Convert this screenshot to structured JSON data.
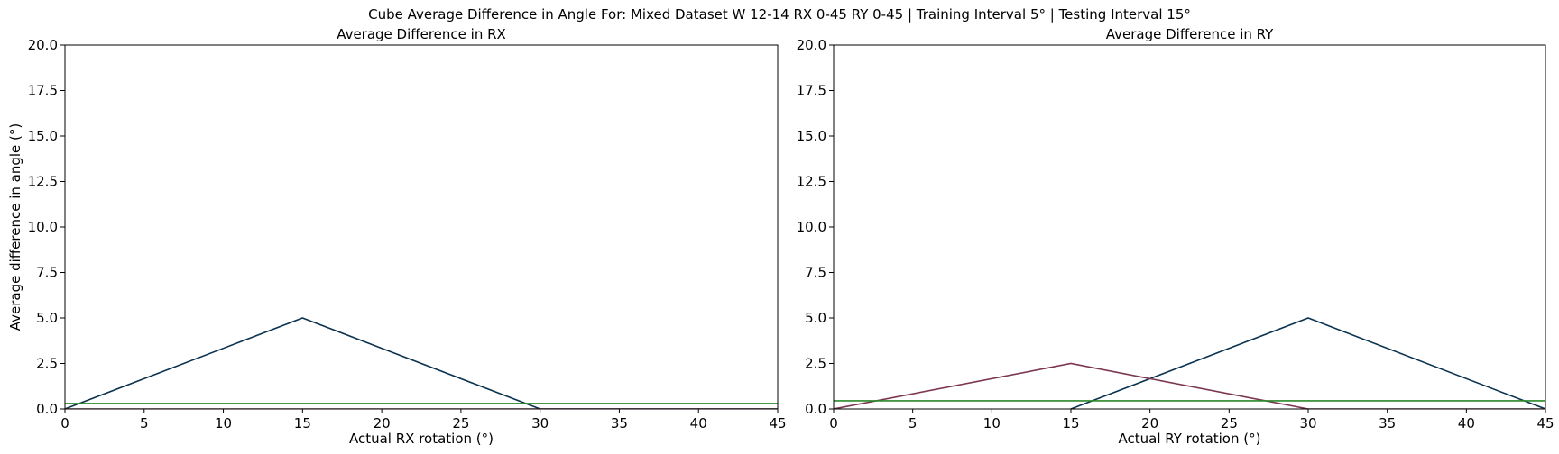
{
  "suptitle": "Cube Average Difference in Angle For: Mixed Dataset W 12-14 RX 0-45 RY 0-45 | Training Interval 5° | Testing Interval 15°",
  "chart_data": [
    {
      "type": "line",
      "title": "Average Difference in RX",
      "xlabel": "Actual RX rotation (°)",
      "ylabel": "Average difference in angle (°)",
      "xlim": [
        0,
        45
      ],
      "ylim": [
        0,
        20
      ],
      "xticks": [
        0,
        5,
        10,
        15,
        20,
        25,
        30,
        35,
        40,
        45
      ],
      "yticks": [
        0.0,
        2.5,
        5.0,
        7.5,
        10.0,
        12.5,
        15.0,
        17.5,
        20.0
      ],
      "xtick_labels": [
        "0",
        "5",
        "10",
        "15",
        "20",
        "25",
        "30",
        "35",
        "40",
        "45"
      ],
      "ytick_labels": [
        "0.0",
        "2.5",
        "5.0",
        "7.5",
        "10.0",
        "12.5",
        "15.0",
        "17.5",
        "20.0"
      ],
      "grid": false,
      "series": [
        {
          "color": "#0b3350",
          "x": [
            0,
            15,
            30,
            45
          ],
          "y": [
            0,
            5,
            0,
            0
          ]
        },
        {
          "color": "#7b3652",
          "x": [
            0,
            15,
            30,
            45
          ],
          "y": [
            0,
            0,
            0,
            0
          ]
        },
        {
          "color": "#2a8a2a",
          "x": [
            0,
            45
          ],
          "y": [
            0.3,
            0.3
          ]
        }
      ]
    },
    {
      "type": "line",
      "title": "Average Difference in RY",
      "xlabel": "Actual RY rotation (°)",
      "ylabel": "",
      "xlim": [
        0,
        45
      ],
      "ylim": [
        0,
        20
      ],
      "xticks": [
        0,
        5,
        10,
        15,
        20,
        25,
        30,
        35,
        40,
        45
      ],
      "yticks": [
        0.0,
        2.5,
        5.0,
        7.5,
        10.0,
        12.5,
        15.0,
        17.5,
        20.0
      ],
      "xtick_labels": [
        "0",
        "5",
        "10",
        "15",
        "20",
        "25",
        "30",
        "35",
        "40",
        "45"
      ],
      "ytick_labels": [
        "0.0",
        "2.5",
        "5.0",
        "7.5",
        "10.0",
        "12.5",
        "15.0",
        "17.5",
        "20.0"
      ],
      "grid": false,
      "series": [
        {
          "color": "#0b3350",
          "x": [
            15,
            30,
            45
          ],
          "y": [
            0,
            5,
            0
          ]
        },
        {
          "color": "#7b3652",
          "x": [
            0,
            15,
            30,
            45
          ],
          "y": [
            0,
            2.5,
            0,
            0
          ]
        },
        {
          "color": "#2a8a2a",
          "x": [
            0,
            45
          ],
          "y": [
            0.45,
            0.45
          ]
        }
      ]
    }
  ]
}
